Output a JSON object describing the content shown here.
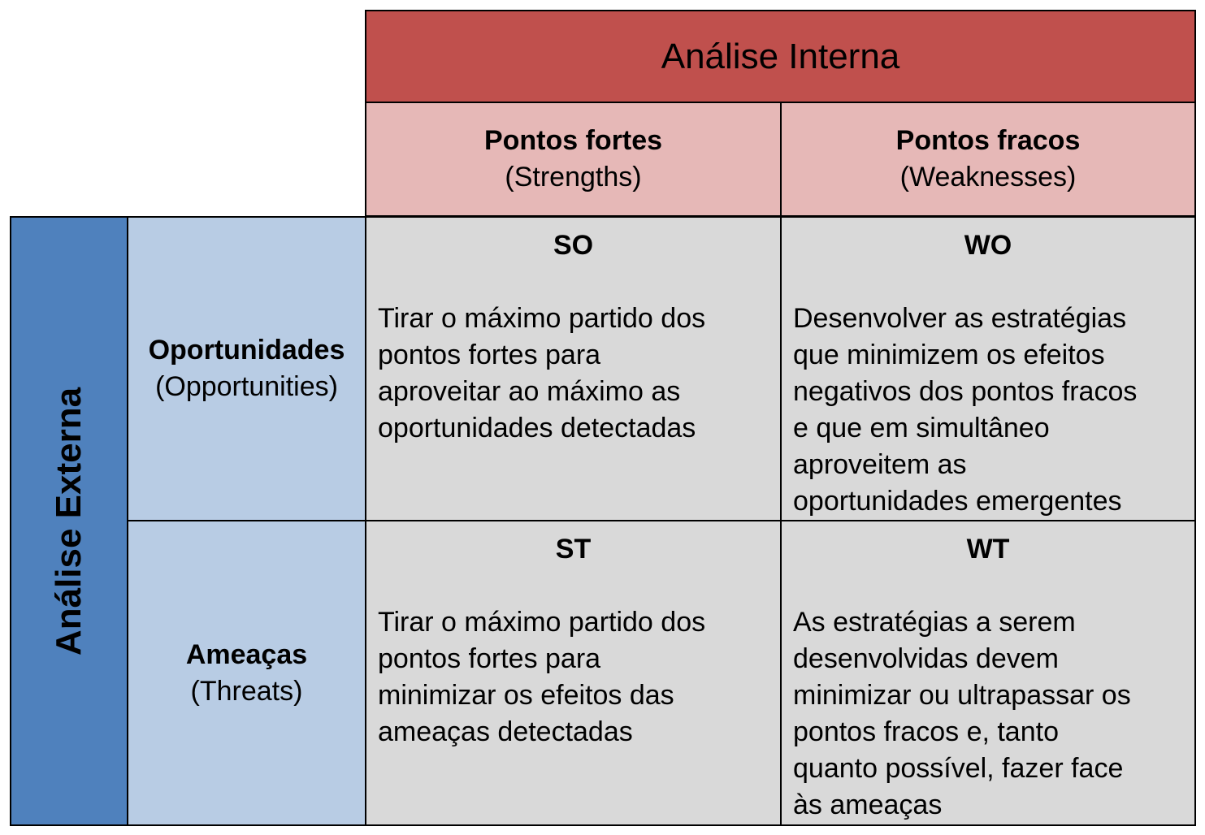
{
  "header": {
    "title": "Análise Interna"
  },
  "columns": [
    {
      "title": "Pontos fortes",
      "subtitle": "(Strengths)"
    },
    {
      "title": "Pontos fracos",
      "subtitle": "(Weaknesses)"
    }
  ],
  "side": {
    "title": "Análise Externa"
  },
  "rows": [
    {
      "title": "Oportunidades",
      "subtitle": "(Opportunities)"
    },
    {
      "title": "Ameaças",
      "subtitle": "(Threats)"
    }
  ],
  "cells": [
    {
      "code": "SO",
      "lines": [
        "Tirar o máximo partido dos",
        "pontos fortes para",
        "aproveitar ao máximo as",
        "oportunidades detectadas"
      ]
    },
    {
      "code": "WO",
      "lines": [
        "Desenvolver as estratégias",
        "que minimizem os efeitos",
        "negativos dos pontos fracos",
        "e que em simultâneo",
        "aproveitem as",
        "oportunidades emergentes"
      ]
    },
    {
      "code": "ST",
      "lines": [
        "Tirar o máximo partido dos",
        "pontos fortes para",
        "minimizar os efeitos das",
        "ameaças detectadas"
      ]
    },
    {
      "code": "WT",
      "lines": [
        "As estratégias a serem",
        "desenvolvidas devem",
        "minimizar ou ultrapassar os",
        "pontos fracos e, tanto",
        "quanto possível, fazer face",
        "às ameaças"
      ]
    }
  ],
  "colors": {
    "internal_header": "#c0504d",
    "internal_sub": "#e6b8b7",
    "external_header": "#4f81bd",
    "external_sub": "#b8cce4",
    "cell": "#d9d9d9"
  }
}
